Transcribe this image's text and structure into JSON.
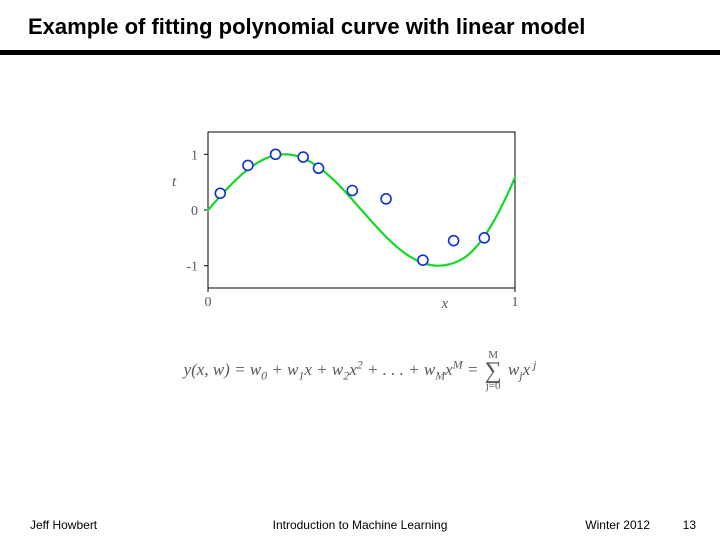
{
  "slide": {
    "title": "Example of fitting polynomial curve with linear model"
  },
  "chart": {
    "type": "scatter-with-curve",
    "background_color": "#ffffff",
    "axis_color": "#000000",
    "axis_width": 1,
    "xlabel": "x",
    "ylabel": "t",
    "label_fontsize": 15,
    "label_fontstyle": "italic",
    "label_color": "#595959",
    "xlim": [
      0,
      1
    ],
    "ylim": [
      -1.4,
      1.4
    ],
    "xticks": [
      0,
      1
    ],
    "xtick_labels": [
      "0",
      "1"
    ],
    "yticks": [
      -1,
      0,
      1
    ],
    "ytick_labels": [
      "-1",
      "0",
      "1"
    ],
    "tick_fontsize": 14,
    "tick_color": "#595959",
    "points_x": [
      0.04,
      0.13,
      0.22,
      0.31,
      0.36,
      0.47,
      0.58,
      0.7,
      0.8,
      0.9
    ],
    "points_y": [
      0.3,
      0.8,
      1.0,
      0.95,
      0.75,
      0.35,
      0.2,
      -0.9,
      -0.55,
      -0.5
    ],
    "marker_radius": 5,
    "marker_edge_color": "#1030d5",
    "marker_fill_color": "#ffffff",
    "marker_edge_width": 1.6,
    "curve_color": "#15d825",
    "curve_width": 2.2,
    "curve_fn": "sin2pi-like-poly"
  },
  "equation": {
    "lhs": "y(x, w)",
    "terms_prefix": "w",
    "sum_var": "j",
    "sum_from": "j=0",
    "sum_to": "M"
  },
  "footer": {
    "left": "Jeff Howbert",
    "center": "Introduction to Machine Learning",
    "right": "Winter 2012",
    "page": "13"
  }
}
